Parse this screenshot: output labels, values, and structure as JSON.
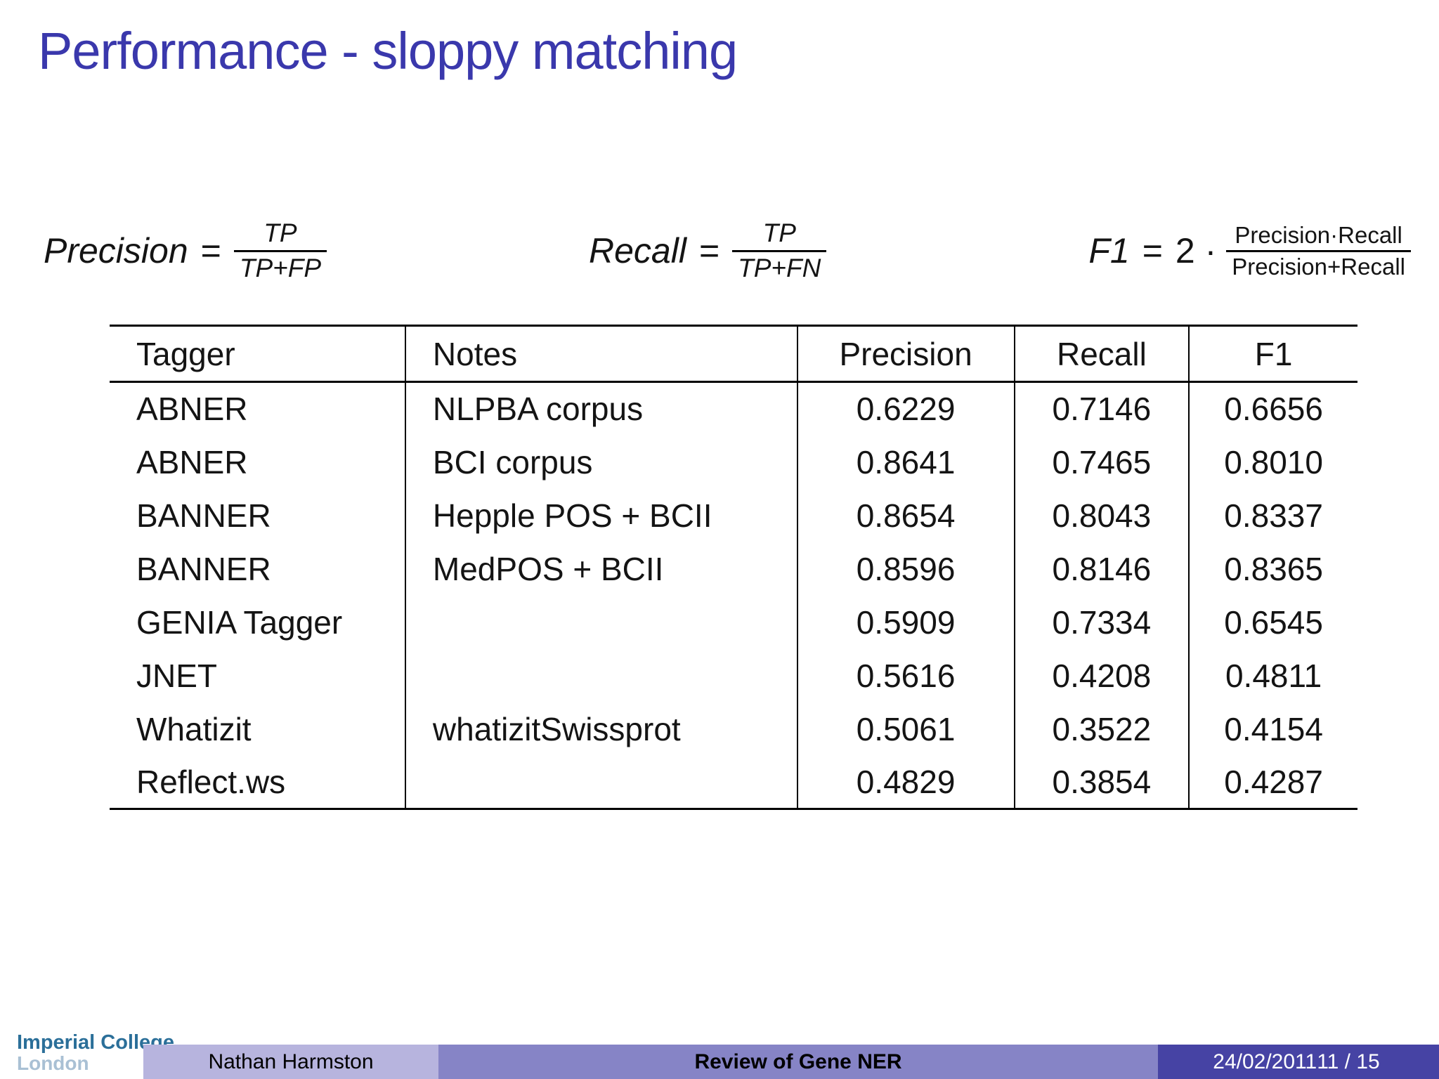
{
  "title": "Performance - sloppy matching",
  "formulas": {
    "precision": {
      "lhs": "Precision",
      "eq": "=",
      "numerator": "TP",
      "denominator": "TP+FP"
    },
    "recall": {
      "lhs": "Recall",
      "eq": "=",
      "numerator": "TP",
      "denominator": "TP+FN"
    },
    "f1": {
      "lhs": "F1",
      "eq": "=",
      "factor": "2 ·",
      "numerator": "Precision·Recall",
      "denominator": "Precision+Recall"
    }
  },
  "table": {
    "headers": [
      "Tagger",
      "Notes",
      "Precision",
      "Recall",
      "F1"
    ],
    "rows": [
      [
        "ABNER",
        "NLPBA corpus",
        "0.6229",
        "0.7146",
        "0.6656"
      ],
      [
        "ABNER",
        "BCI corpus",
        "0.8641",
        "0.7465",
        "0.8010"
      ],
      [
        "BANNER",
        "Hepple POS + BCII",
        "0.8654",
        "0.8043",
        "0.8337"
      ],
      [
        "BANNER",
        "MedPOS + BCII",
        "0.8596",
        "0.8146",
        "0.8365"
      ],
      [
        "GENIA Tagger",
        "",
        "0.5909",
        "0.7334",
        "0.6545"
      ],
      [
        "JNET",
        "",
        "0.5616",
        "0.4208",
        "0.4811"
      ],
      [
        "Whatizit",
        "whatizitSwissprot",
        "0.5061",
        "0.3522",
        "0.4154"
      ],
      [
        "Reflect.ws",
        "",
        "0.4829",
        "0.3854",
        "0.4287"
      ]
    ]
  },
  "footer": {
    "logo_line1": "Imperial College",
    "logo_line2": "London",
    "author": "Nathan Harmston",
    "talk_title": "Review of Gene NER",
    "date": "24/02/2011",
    "page": "11 / 15"
  },
  "colors": {
    "title_color": "#3a38ac",
    "text_color": "#141414",
    "footer_author_bg": "#b7b4de",
    "footer_title_bg": "#8684c6",
    "footer_date_bg": "#4643a4",
    "footer_date_fg": "#ffffff",
    "logo_primary": "#2b6f99",
    "logo_secondary": "#a9c0d4",
    "rule_color": "#000000"
  }
}
